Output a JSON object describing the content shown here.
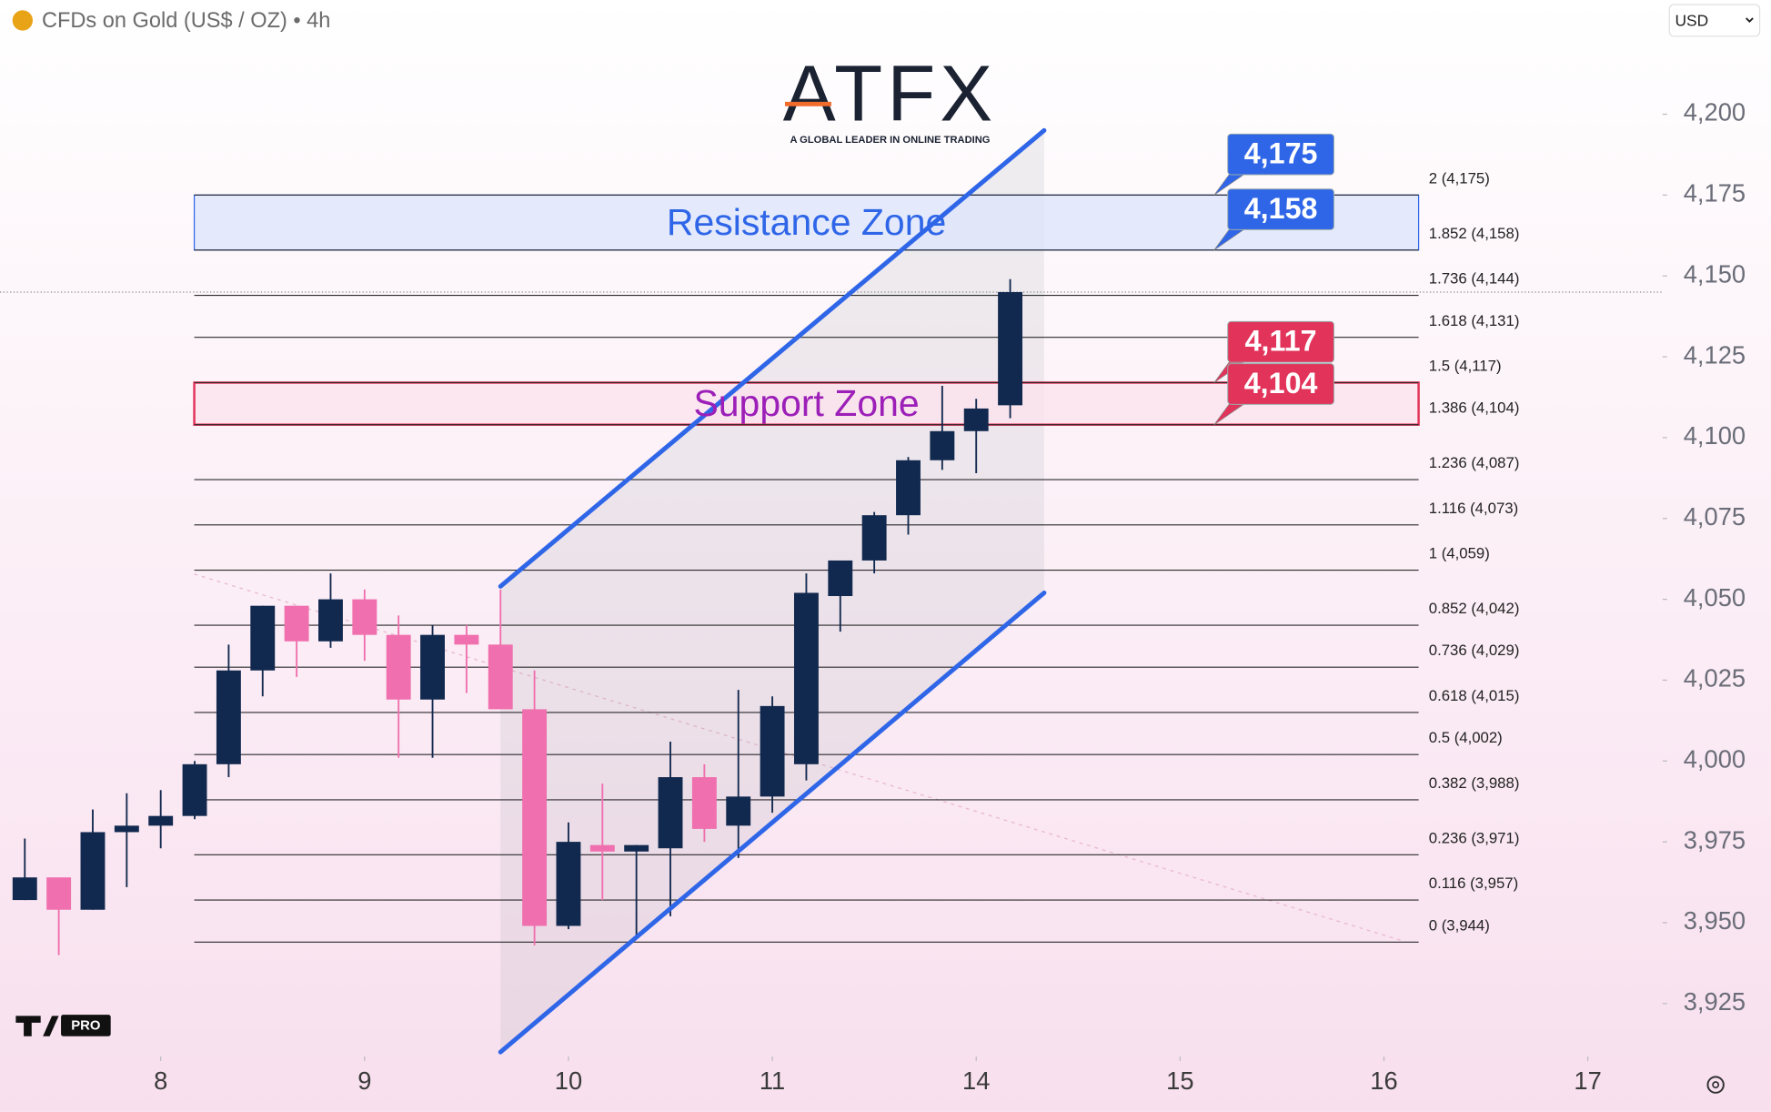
{
  "header": {
    "symbol": "CFDs on Gold (US$ / OZ) • 4h",
    "currency": "USD"
  },
  "logo": {
    "name": "ATFX",
    "tagline": "A GLOBAL LEADER IN ONLINE TRADING"
  },
  "badge": "PRO",
  "chart_data": {
    "type": "candlestick",
    "x": [
      0,
      1,
      2,
      3,
      4,
      5,
      6,
      7,
      8,
      9,
      10,
      11,
      12,
      13,
      14,
      15,
      16,
      17,
      18,
      19,
      20,
      21,
      22,
      23,
      24,
      25,
      26,
      27,
      28,
      29
    ],
    "open": [
      3957,
      3964,
      3954,
      3978,
      3980,
      3983,
      3999,
      4028,
      4048,
      4037,
      4050,
      4039,
      4019,
      4039,
      4036,
      4016,
      3949,
      3974,
      3972,
      3973,
      3995,
      3980,
      3989,
      3999,
      4051,
      4062,
      4076,
      4093,
      4102,
      4110
    ],
    "high": [
      3976,
      3964,
      3985,
      3990,
      3991,
      4000,
      4036,
      4048,
      4048,
      4058,
      4053,
      4045,
      4042,
      4042,
      4053,
      4028,
      3981,
      3993,
      3974,
      4006,
      3999,
      4022,
      4020,
      4058,
      4062,
      4077,
      4094,
      4116,
      4112,
      4149
    ],
    "low": [
      3957,
      3940,
      3954,
      3961,
      3973,
      3982,
      3995,
      4020,
      4026,
      4035,
      4031,
      4001,
      4001,
      4021,
      4016,
      3943,
      3948,
      3957,
      3945,
      3952,
      3975,
      3970,
      3984,
      3994,
      4040,
      4058,
      4070,
      4090,
      4089,
      4106
    ],
    "close": [
      3964,
      3954,
      3978,
      3980,
      3983,
      3999,
      4028,
      4048,
      4037,
      4050,
      4039,
      4019,
      4039,
      4036,
      4016,
      3949,
      3975,
      3972,
      3974,
      3995,
      3979,
      3989,
      4017,
      4052,
      4062,
      4076,
      4093,
      4102,
      4109,
      4145
    ],
    "up_color": "#12294f",
    "down_color": "#f06fae",
    "xlim": [
      -0.73,
      48.2
    ],
    "xticks": [
      {
        "value": 4,
        "label": "8"
      },
      {
        "value": 10,
        "label": "9"
      },
      {
        "value": 16,
        "label": "10"
      },
      {
        "value": 22,
        "label": "11"
      },
      {
        "value": 28,
        "label": "14"
      },
      {
        "value": 34,
        "label": "15"
      },
      {
        "value": 40,
        "label": "16"
      },
      {
        "value": 46,
        "label": "17"
      }
    ],
    "ylim": [
      3908.6,
      4235.3
    ],
    "yticks": [
      {
        "value": 3925,
        "label": "3,925"
      },
      {
        "value": 3950,
        "label": "3,950"
      },
      {
        "value": 3975,
        "label": "3,975"
      },
      {
        "value": 4000,
        "label": "4,000"
      },
      {
        "value": 4025,
        "label": "4,025"
      },
      {
        "value": 4050,
        "label": "4,050"
      },
      {
        "value": 4075,
        "label": "4,075"
      },
      {
        "value": 4100,
        "label": "4,100"
      },
      {
        "value": 4125,
        "label": "4,125"
      },
      {
        "value": 4150,
        "label": "4,150"
      },
      {
        "value": 4175,
        "label": "4,175"
      },
      {
        "value": 4200,
        "label": "4,200"
      }
    ],
    "fib_levels": [
      {
        "value": 4175,
        "label": "2 (4,175)"
      },
      {
        "value": 4158,
        "label": "1.852 (4,158)"
      },
      {
        "value": 4144,
        "label": "1.736 (4,144)"
      },
      {
        "value": 4131,
        "label": "1.618 (4,131)"
      },
      {
        "value": 4117,
        "label": "1.5 (4,117)"
      },
      {
        "value": 4104,
        "label": "1.386 (4,104)"
      },
      {
        "value": 4087,
        "label": "1.236 (4,087)"
      },
      {
        "value": 4073,
        "label": "1.116 (4,073)"
      },
      {
        "value": 4059,
        "label": "1 (4,059)"
      },
      {
        "value": 4042,
        "label": "0.852 (4,042)"
      },
      {
        "value": 4029,
        "label": "0.736 (4,029)"
      },
      {
        "value": 4015,
        "label": "0.618 (4,015)"
      },
      {
        "value": 4002,
        "label": "0.5 (4,002)"
      },
      {
        "value": 3988,
        "label": "0.382 (3,988)"
      },
      {
        "value": 3971,
        "label": "0.236 (3,971)"
      },
      {
        "value": 3957,
        "label": "0.116 (3,957)"
      },
      {
        "value": 3944,
        "label": "0 (3,944)"
      }
    ],
    "zones": [
      {
        "name": "Resistance Zone",
        "color": "#2f66e8",
        "fill": "#dde6fb",
        "levels": [
          {
            "value": 4175,
            "label": "4,175"
          },
          {
            "value": 4158,
            "label": "4,158"
          }
        ]
      },
      {
        "name": "Support Zone",
        "color": "#e2335a",
        "fill": "#fbe3ee",
        "levels": [
          {
            "value": 4117,
            "label": "4,117"
          },
          {
            "value": 4104,
            "label": "4,104"
          }
        ]
      }
    ],
    "channel": {
      "x": [
        14,
        30
      ],
      "upper": [
        4054,
        4195
      ],
      "lower": [
        3910,
        4052
      ],
      "color": "#2f66e8"
    }
  }
}
